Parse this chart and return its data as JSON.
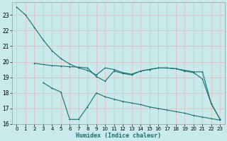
{
  "bg_color": "#c8eaea",
  "grid_color": "#b0d8d8",
  "line_color": "#1a7070",
  "xlabel": "Humidex (Indice chaleur)",
  "ylim": [
    16,
    23.8
  ],
  "xlim": [
    -0.5,
    23.5
  ],
  "yticks": [
    16,
    17,
    18,
    19,
    20,
    21,
    22,
    23
  ],
  "xticks": [
    0,
    1,
    2,
    3,
    4,
    5,
    6,
    7,
    8,
    9,
    10,
    11,
    12,
    13,
    14,
    15,
    16,
    17,
    18,
    19,
    20,
    21,
    22,
    23
  ],
  "line1_x": [
    0,
    1,
    2,
    3,
    4,
    5,
    6,
    7,
    8,
    9,
    10,
    11,
    12,
    13,
    14,
    15,
    16,
    17,
    18,
    19,
    20,
    21,
    22,
    23
  ],
  "line1_y": [
    23.5,
    23.0,
    22.2,
    21.4,
    20.7,
    20.2,
    19.85,
    19.6,
    19.45,
    19.15,
    19.6,
    19.5,
    19.3,
    19.2,
    19.4,
    19.5,
    19.6,
    19.6,
    19.55,
    19.4,
    19.3,
    18.9,
    17.3,
    16.3
  ],
  "line2_x": [
    2,
    3,
    4,
    5,
    6,
    7,
    8,
    9,
    10,
    11,
    12,
    13,
    14,
    15,
    16,
    17,
    18,
    19,
    20,
    21,
    22,
    23
  ],
  "line2_y": [
    19.9,
    19.82,
    19.75,
    19.72,
    19.68,
    19.65,
    19.6,
    19.05,
    18.75,
    19.4,
    19.25,
    19.15,
    19.4,
    19.5,
    19.6,
    19.6,
    19.55,
    19.45,
    19.35,
    19.35,
    17.3,
    16.3
  ],
  "line3_x": [
    3,
    4,
    5,
    6,
    7,
    8,
    9,
    10,
    11,
    12,
    13,
    14,
    15,
    16,
    17,
    18,
    19,
    20,
    21,
    22,
    23
  ],
  "line3_y": [
    18.65,
    18.3,
    18.05,
    16.3,
    16.3,
    17.1,
    18.0,
    17.75,
    17.6,
    17.45,
    17.35,
    17.25,
    17.1,
    17.0,
    16.9,
    16.8,
    16.7,
    16.55,
    16.45,
    16.35,
    16.25
  ]
}
